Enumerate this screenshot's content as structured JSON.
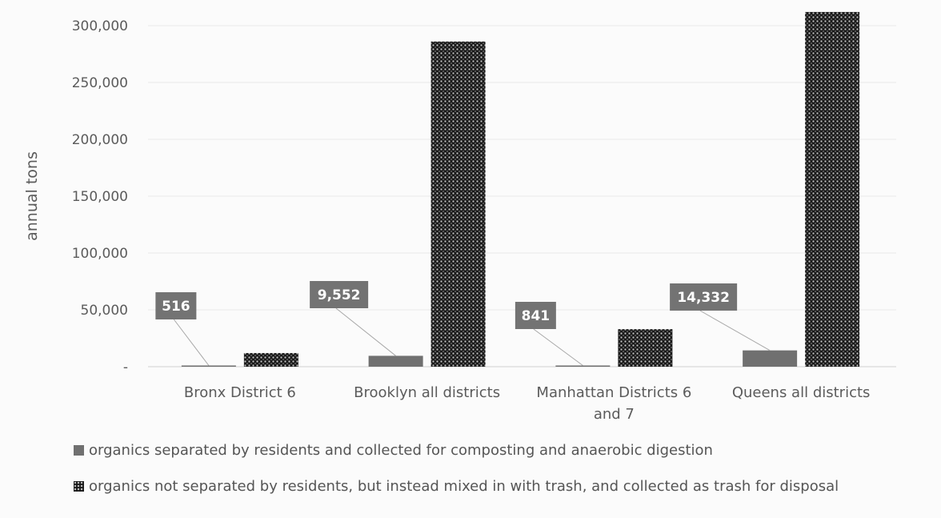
{
  "chart_data": {
    "type": "bar",
    "ylabel": "annual tons",
    "ylim": [
      0,
      300000
    ],
    "y_ticks": [
      0,
      50000,
      100000,
      150000,
      200000,
      250000,
      300000
    ],
    "y_tick_labels": [
      "-",
      "50,000",
      "100,000",
      "150,000",
      "200,000",
      "250,000",
      "300,000"
    ],
    "categories": [
      [
        "Bronx District 6"
      ],
      [
        "Brooklyn all districts"
      ],
      [
        "Manhattan Districts 6",
        "and 7"
      ],
      [
        "Queens all districts"
      ]
    ],
    "series": [
      {
        "name": "organics separated by residents and collected for composting and anaerobic digestion",
        "values": [
          516,
          9552,
          841,
          14332
        ],
        "data_labels": [
          "516",
          "9,552",
          "841",
          "14,332"
        ],
        "color": "#707070"
      },
      {
        "name": "organics not separated by residents, but instead mixed in with trash, and collected as trash for disposal",
        "values": [
          12000,
          286000,
          33000,
          312000
        ],
        "color": "#1a1a1a"
      }
    ],
    "grid": true,
    "legend_position": "bottom"
  }
}
